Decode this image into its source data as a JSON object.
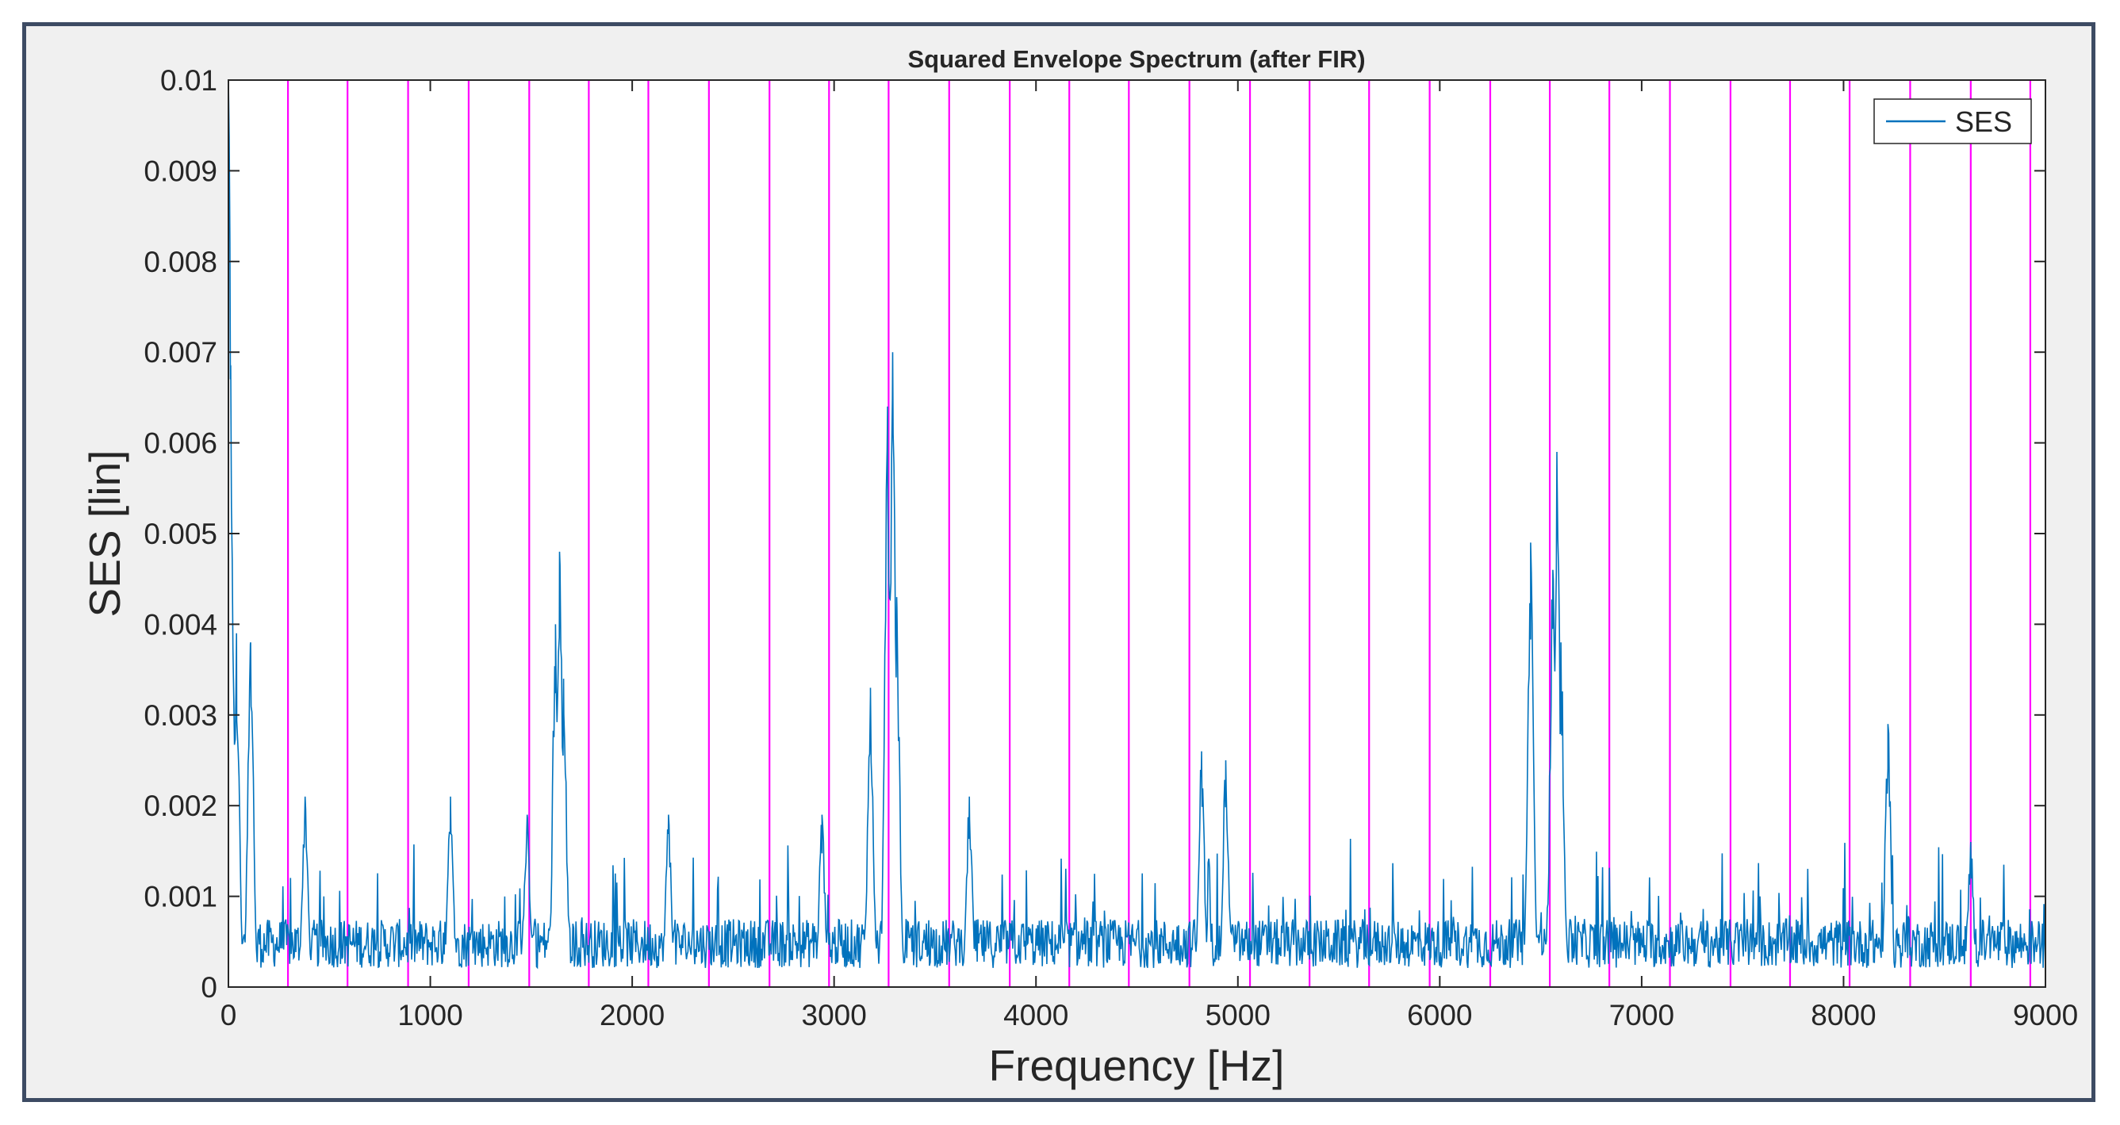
{
  "chart_data": {
    "type": "line",
    "title": "Squared Envelope Spectrum (after FIR)",
    "xlabel": "Frequency [Hz]",
    "ylabel": "SES [lin]",
    "xlim": [
      0,
      9000
    ],
    "ylim": [
      0,
      0.01
    ],
    "x_ticks": [
      0,
      1000,
      2000,
      3000,
      4000,
      5000,
      6000,
      7000,
      8000,
      9000
    ],
    "x_tick_labels": [
      "0",
      "1000",
      "2000",
      "3000",
      "4000",
      "5000",
      "6000",
      "7000",
      "8000",
      "9000"
    ],
    "y_ticks": [
      0,
      0.001,
      0.002,
      0.003,
      0.004,
      0.005,
      0.006,
      0.007,
      0.008,
      0.009,
      0.01
    ],
    "y_tick_labels": [
      "0",
      "0.001",
      "0.002",
      "0.003",
      "0.004",
      "0.005",
      "0.006",
      "0.007",
      "0.008",
      "0.009",
      "0.01"
    ],
    "grid": false,
    "legend": {
      "position": "top-right",
      "entries": [
        "SES"
      ]
    },
    "series": [
      {
        "name": "SES",
        "color": "#0072bd",
        "baseline_level": 0.0006,
        "peaks": [
          {
            "x": 0,
            "y": 0.01
          },
          {
            "x": 10,
            "y": 0.0067
          },
          {
            "x": 40,
            "y": 0.0039
          },
          {
            "x": 110,
            "y": 0.0038
          },
          {
            "x": 380,
            "y": 0.0021
          },
          {
            "x": 1100,
            "y": 0.0021
          },
          {
            "x": 1480,
            "y": 0.0019
          },
          {
            "x": 1620,
            "y": 0.004
          },
          {
            "x": 1640,
            "y": 0.0048
          },
          {
            "x": 1660,
            "y": 0.0034
          },
          {
            "x": 2180,
            "y": 0.0019
          },
          {
            "x": 2940,
            "y": 0.0019
          },
          {
            "x": 3180,
            "y": 0.0033
          },
          {
            "x": 3265,
            "y": 0.0064
          },
          {
            "x": 3290,
            "y": 0.007
          },
          {
            "x": 3310,
            "y": 0.0043
          },
          {
            "x": 3670,
            "y": 0.0021
          },
          {
            "x": 4820,
            "y": 0.0026
          },
          {
            "x": 4940,
            "y": 0.0025
          },
          {
            "x": 6450,
            "y": 0.0049
          },
          {
            "x": 6560,
            "y": 0.0046
          },
          {
            "x": 6580,
            "y": 0.0059
          },
          {
            "x": 6600,
            "y": 0.0038
          },
          {
            "x": 8220,
            "y": 0.0029
          },
          {
            "x": 8630,
            "y": 0.0016
          }
        ]
      }
    ],
    "vertical_markers": {
      "color": "#ff00ff",
      "x": [
        295,
        590,
        890,
        1190,
        1490,
        1785,
        2080,
        2380,
        2680,
        2975,
        3270,
        3570,
        3870,
        4165,
        4460,
        4760,
        5060,
        5355,
        5650,
        5950,
        6250,
        6545,
        6840,
        7140,
        7440,
        7735,
        8030,
        8330,
        8630,
        8925
      ]
    }
  }
}
